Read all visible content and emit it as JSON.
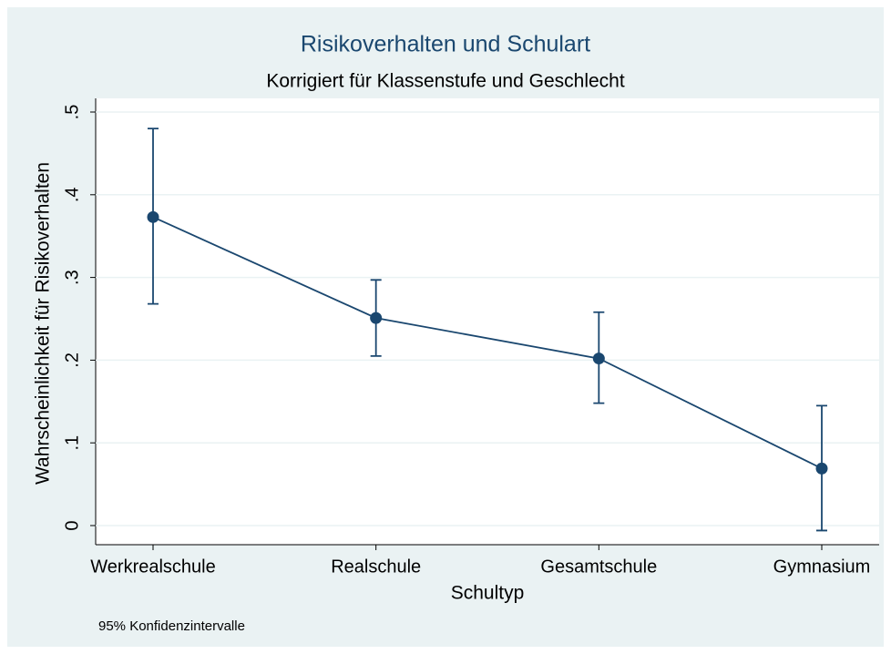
{
  "chart_data": {
    "type": "line",
    "title": "Risikoverhalten und Schulart",
    "subtitle": "Korrigiert für Klassenstufe und Geschlecht",
    "xlabel": "Schultyp",
    "ylabel": "Wahrscheinlichkeit für Risikoverhalten",
    "note": "95% Konfidenzintervalle",
    "categories": [
      "Werkrealschule",
      "Realschule",
      "Gesamtschule",
      "Gymnasium"
    ],
    "series": [
      {
        "name": "Wahrscheinlichkeit für Risikoverhalten",
        "color": "#1a476f",
        "values": [
          0.373,
          0.251,
          0.202,
          0.069
        ],
        "lower": [
          0.268,
          0.205,
          0.148,
          -0.006
        ],
        "upper": [
          0.48,
          0.297,
          0.258,
          0.145
        ]
      }
    ],
    "ylim": [
      0,
      0.5
    ],
    "yticks": [
      0,
      {
        "value": 0.1,
        "label": ".1"
      },
      {
        "value": 0.2,
        "label": ".2"
      },
      {
        "value": 0.3,
        "label": ".3"
      },
      {
        "value": 0.4,
        "label": ".4"
      },
      {
        "value": 0.5,
        "label": ".5"
      }
    ],
    "grid": true
  }
}
